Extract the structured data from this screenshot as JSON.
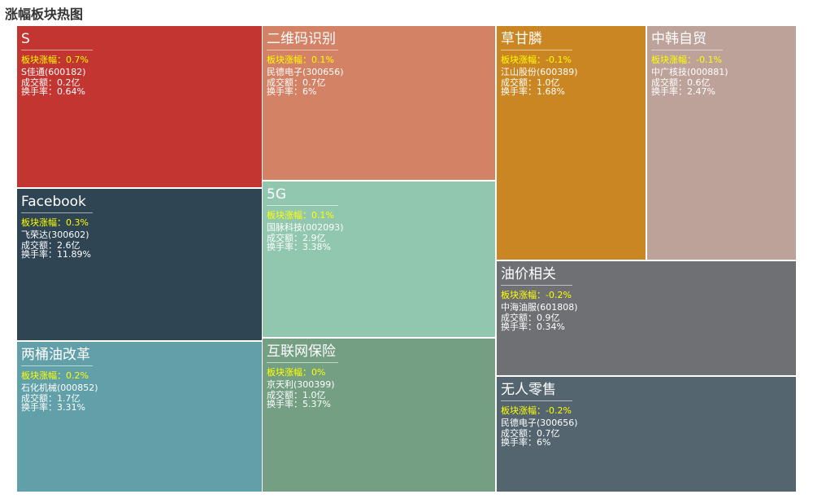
{
  "page": {
    "title": "涨幅板块热图"
  },
  "chart_data": {
    "type": "treemap",
    "title": "涨幅板块热图",
    "labels": {
      "change": "板块涨幅：",
      "volume": "成交额：",
      "turnover": "换手率："
    },
    "sectors": [
      {
        "name": "S",
        "change": "0.7%",
        "stock": "S佳通(600182)",
        "volume": "0.2亿",
        "turnover": "0.64%",
        "color": "#c23531"
      },
      {
        "name": "Facebook",
        "change": "0.3%",
        "stock": "飞荣达(300602)",
        "volume": "2.6亿",
        "turnover": "11.89%",
        "color": "#2f4554"
      },
      {
        "name": "两桶油改革",
        "change": "0.2%",
        "stock": "石化机械(000852)",
        "volume": "1.7亿",
        "turnover": "3.31%",
        "color": "#61a0a8"
      },
      {
        "name": "二维码识别",
        "change": "0.1%",
        "stock": "民德电子(300656)",
        "volume": "0.7亿",
        "turnover": "6%",
        "color": "#d48265"
      },
      {
        "name": "5G",
        "change": "0.1%",
        "stock": "国脉科技(002093)",
        "volume": "2.9亿",
        "turnover": "3.38%",
        "color": "#91c7ae"
      },
      {
        "name": "互联网保险",
        "change": "0%",
        "stock": "京天利(300399)",
        "volume": "1.0亿",
        "turnover": "5.37%",
        "color": "#749f83"
      },
      {
        "name": "草甘膦",
        "change": "-0.1%",
        "stock": "江山股份(600389)",
        "volume": "1.0亿",
        "turnover": "1.68%",
        "color": "#ca8622"
      },
      {
        "name": "中韩自贸",
        "change": "-0.1%",
        "stock": "中广核技(000881)",
        "volume": "0.6亿",
        "turnover": "2.47%",
        "color": "#bda29a"
      },
      {
        "name": "油价相关",
        "change": "-0.2%",
        "stock": "中海油服(601808)",
        "volume": "0.9亿",
        "turnover": "0.34%",
        "color": "#6e7074"
      },
      {
        "name": "无人零售",
        "change": "-0.2%",
        "stock": "民德电子(300656)",
        "volume": "0.7亿",
        "turnover": "6%",
        "color": "#546570"
      }
    ]
  }
}
